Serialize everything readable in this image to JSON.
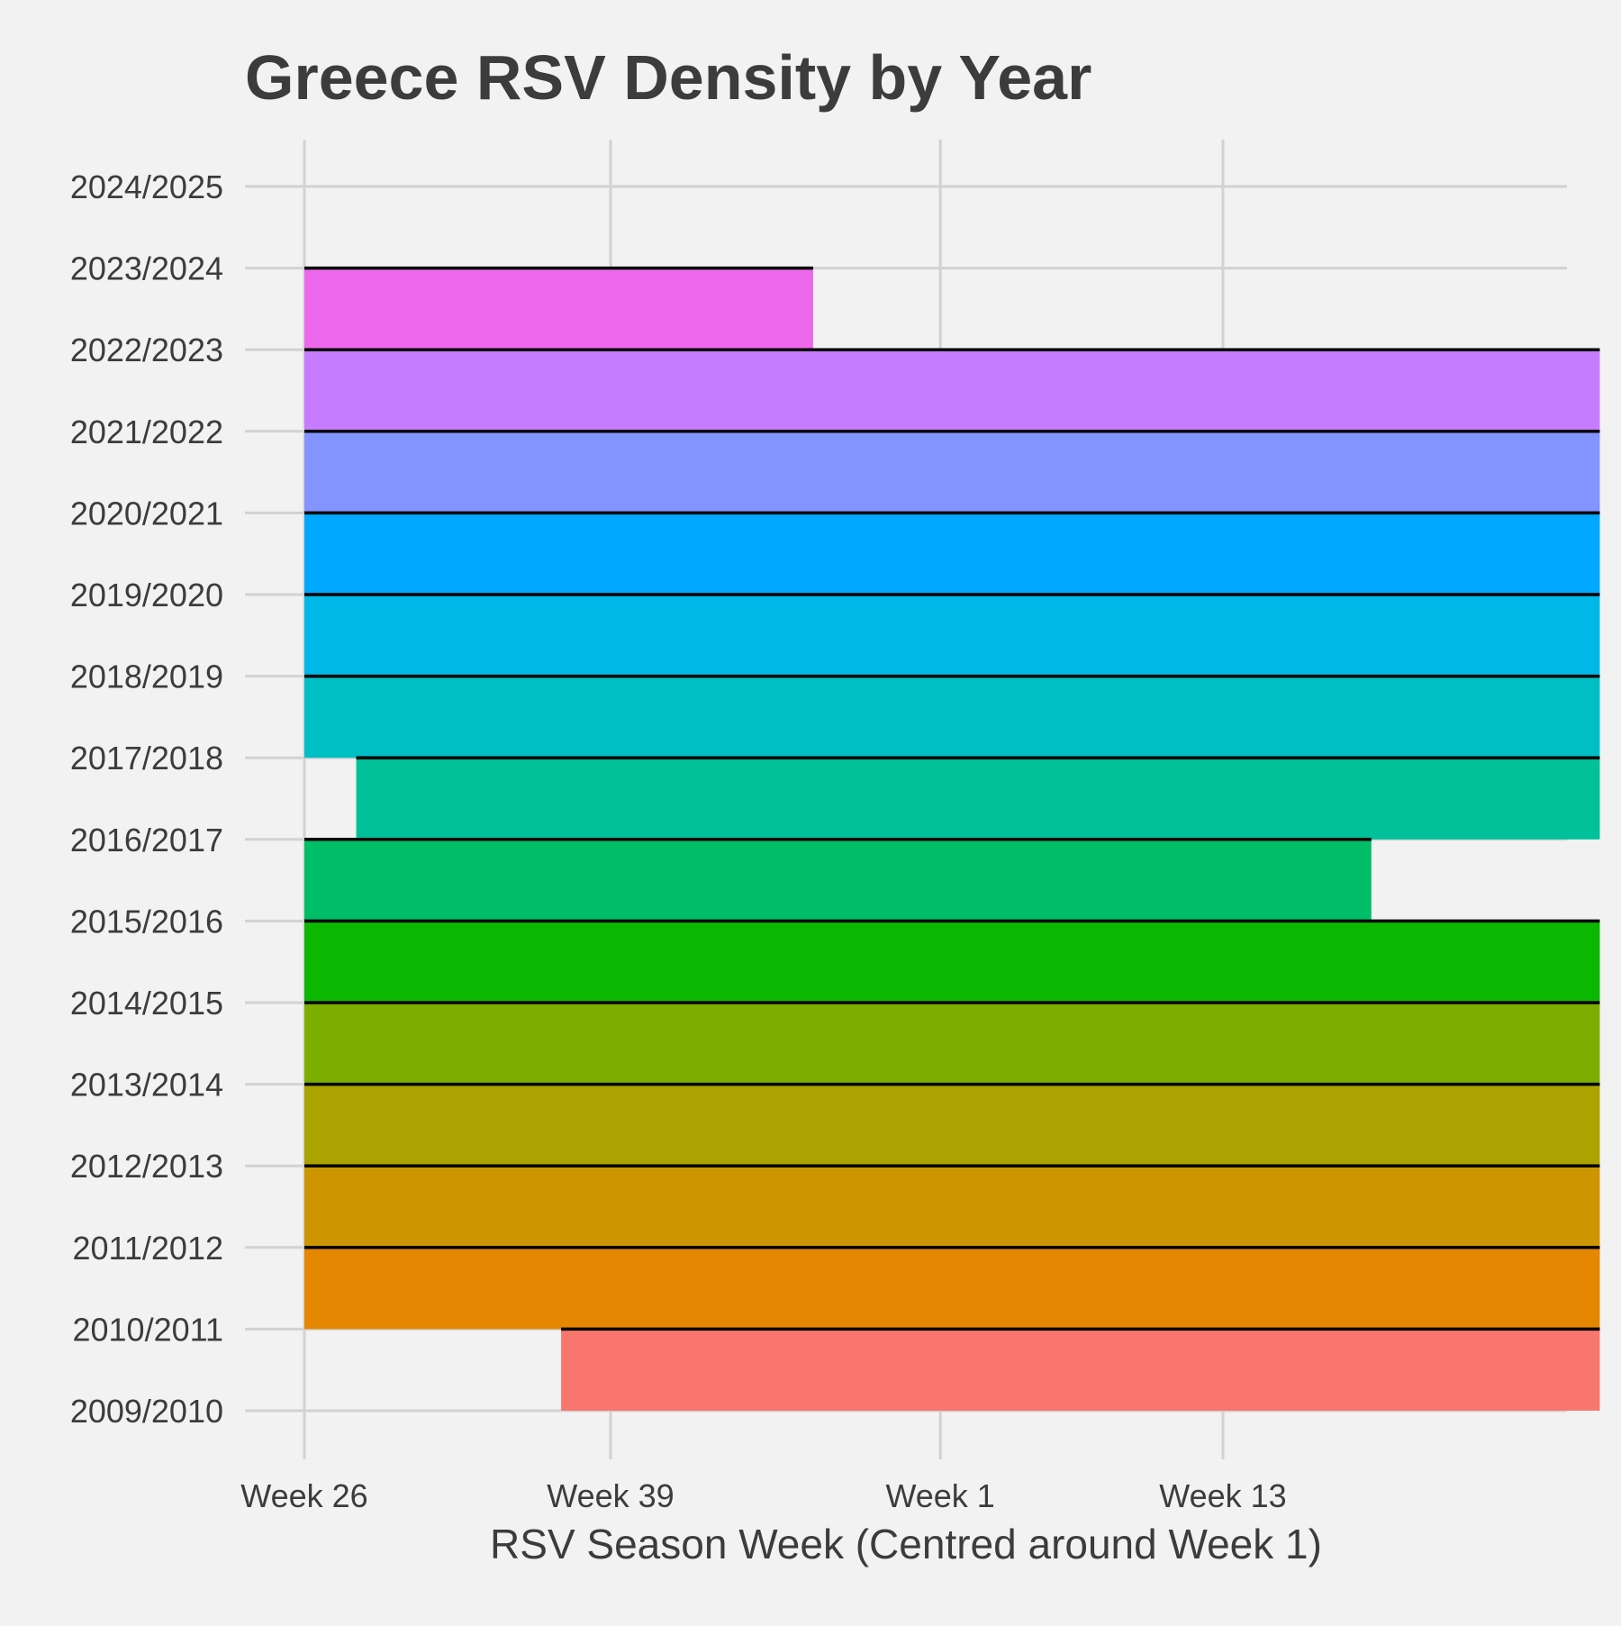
{
  "chart_data": {
    "type": "ridgeline",
    "title": "Greece RSV Density by Year",
    "xlabel": "RSV Season Week (Centred around Week 1)",
    "ylabel": "",
    "x_ticks": [
      {
        "label": "Week 26",
        "value": 0
      },
      {
        "label": "Week 39",
        "value": 13
      },
      {
        "label": "Week 1",
        "value": 27
      },
      {
        "label": "Week 13",
        "value": 39
      }
    ],
    "x_range": [
      0,
      55
    ],
    "grid": true,
    "legend": "none",
    "series": [
      {
        "year": "2009/2010",
        "x_start": 10.9,
        "x_end": 55,
        "color": "#F8766D"
      },
      {
        "year": "2010/2011",
        "x_start": 0,
        "x_end": 55,
        "color": "#E58700"
      },
      {
        "year": "2011/2012",
        "x_start": 0,
        "x_end": 55,
        "color": "#CD9600"
      },
      {
        "year": "2012/2013",
        "x_start": 0,
        "x_end": 55,
        "color": "#ABA300"
      },
      {
        "year": "2013/2014",
        "x_start": 0,
        "x_end": 55,
        "color": "#7CAE00"
      },
      {
        "year": "2014/2015",
        "x_start": 0,
        "x_end": 55,
        "color": "#0CB702"
      },
      {
        "year": "2015/2016",
        "x_start": 0,
        "x_end": 45.3,
        "color": "#00BE67"
      },
      {
        "year": "2016/2017",
        "x_start": 2.2,
        "x_end": 55,
        "color": "#00C19A"
      },
      {
        "year": "2017/2018",
        "x_start": 0,
        "x_end": 55,
        "color": "#00BFC4"
      },
      {
        "year": "2018/2019",
        "x_start": 0,
        "x_end": 55,
        "color": "#00B8E7"
      },
      {
        "year": "2019/2020",
        "x_start": 0,
        "x_end": 55,
        "color": "#00A9FF"
      },
      {
        "year": "2020/2021",
        "x_start": 0,
        "x_end": 55,
        "color": "#8494FF"
      },
      {
        "year": "2021/2022",
        "x_start": 0,
        "x_end": 55,
        "color": "#C77CFF"
      },
      {
        "year": "2022/2023",
        "x_start": 0,
        "x_end": 21.6,
        "color": "#ED68ED"
      },
      {
        "year": "2023/2024",
        "x_start": null,
        "x_end": null,
        "color": "#FF61CC"
      },
      {
        "year": "2024/2025",
        "x_start": null,
        "x_end": null,
        "color": "#FF61CC"
      }
    ]
  }
}
